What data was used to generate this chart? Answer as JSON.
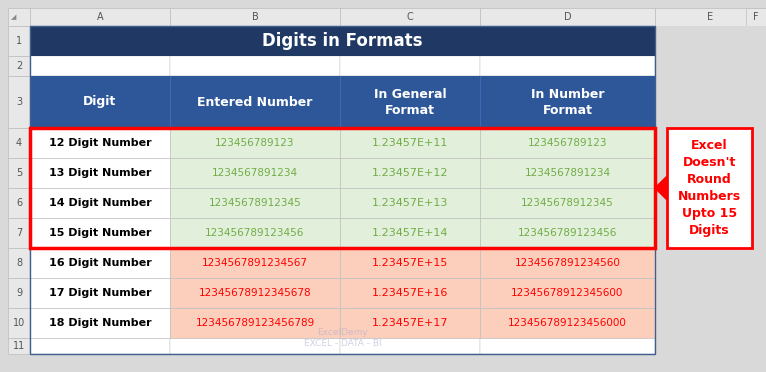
{
  "title": "Digits in Formats",
  "title_bg": "#1F3864",
  "title_color": "#FFFFFF",
  "header_bg": "#2E5799",
  "header_color": "#FFFFFF",
  "col_headers": [
    "Digit",
    "Entered Number",
    "In General\nFormat",
    "In Number\nFormat"
  ],
  "col1_data": [
    "12 Digit Number",
    "13 Digit Number",
    "14 Digit Number",
    "15 Digit Number",
    "16 Digit Number",
    "17 Digit Number",
    "18 Digit Number"
  ],
  "col2_data": [
    "123456789123",
    "1234567891234",
    "12345678912345",
    "123456789123456",
    "1234567891234567",
    "12345678912345678",
    "123456789123456789"
  ],
  "col3_data": [
    "1.23457E+11",
    "1.23457E+12",
    "1.23457E+13",
    "1.23457E+14",
    "1.23457E+15",
    "1.23457E+16",
    "1.23457E+17"
  ],
  "col4_data": [
    "123456789123",
    "1234567891234",
    "12345678912345",
    "123456789123456",
    "12345678912345 60",
    "123456789123456 00",
    "12345678912345 6000"
  ],
  "col4_data_correct": [
    "123456789123",
    "1234567891234",
    "12345678912345",
    "123456789123456",
    "12345678912345 60",
    "12345678912345 600",
    "12345678912345 6000"
  ],
  "col4_final": [
    "123456789123",
    "1234567891234",
    "12345678912345",
    "123456789123456",
    "1234567891234560",
    "12345678912345600",
    "123456789123456000"
  ],
  "green_bg": "#E2EFDA",
  "salmon_bg": "#FCCFBC",
  "white_bg": "#FFFFFF",
  "green_text": "#70AD47",
  "red_text": "#FF0000",
  "black_text": "#000000",
  "white_text": "#FFFFFF",
  "excel_gray_bg": "#D9D9D9",
  "excel_header_bg": "#F2F2F2",
  "excel_col_labels": [
    "A",
    "B",
    "C",
    "D",
    "E",
    "F"
  ],
  "excel_row_labels": [
    "1",
    "2",
    "3",
    "4",
    "5",
    "6",
    "7",
    "8",
    "9",
    "10",
    "11"
  ],
  "annotation_text": "Excel\nDoesn't\nRound\nNumbers\nUpto 15\nDigits",
  "annotation_text_color": "#FF0000",
  "annotation_bg": "#FFFFFF",
  "annotation_border": "#FF0000"
}
